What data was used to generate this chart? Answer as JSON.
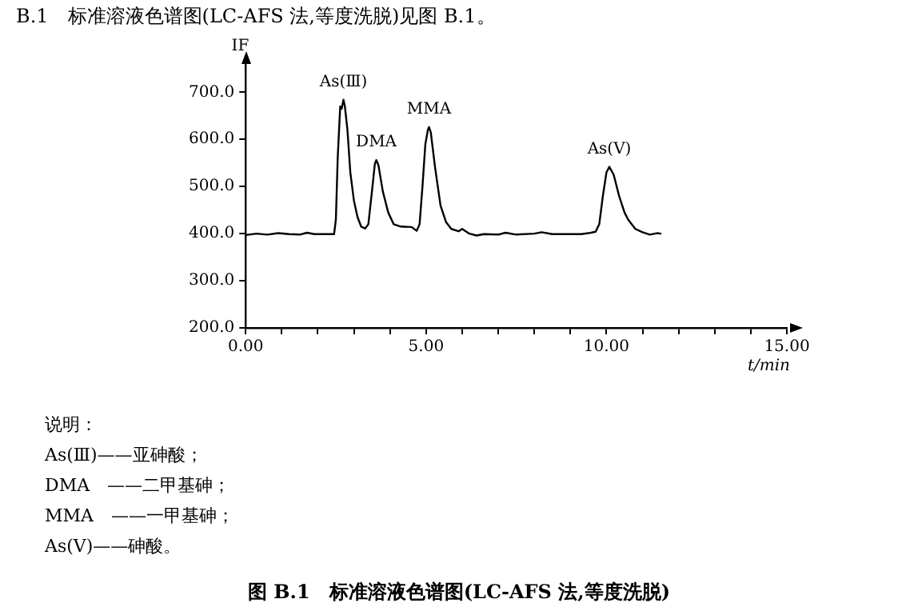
{
  "chart_data": {
    "type": "line",
    "title": "图 B.1　标准溶液色谱图(LC-AFS 法,等度洗脱)",
    "xlabel": "t/min",
    "ylabel": "IF",
    "x": [
      0.0,
      0.3,
      0.6,
      0.9,
      1.2,
      1.5,
      1.7,
      1.9,
      2.2,
      2.45,
      2.5,
      2.55,
      2.62,
      2.66,
      2.71,
      2.75,
      2.82,
      2.9,
      3.0,
      3.1,
      3.2,
      3.31,
      3.4,
      3.5,
      3.58,
      3.62,
      3.68,
      3.8,
      3.95,
      4.1,
      4.3,
      4.6,
      4.74,
      4.82,
      4.9,
      4.98,
      5.05,
      5.08,
      5.13,
      5.25,
      5.4,
      5.55,
      5.7,
      5.9,
      6.0,
      6.2,
      6.4,
      6.6,
      7.0,
      7.2,
      7.5,
      8.0,
      8.2,
      8.5,
      9.0,
      9.3,
      9.5,
      9.7,
      9.8,
      9.9,
      10.0,
      10.08,
      10.2,
      10.35,
      10.5,
      10.6,
      10.8,
      11.0,
      11.2,
      11.4,
      11.5
    ],
    "series": [
      {
        "color": "#000000",
        "values": [
          397,
          400,
          398,
          401,
          399,
          398,
          402,
          399,
          399,
          399,
          430,
          560,
          670,
          665,
          684,
          670,
          620,
          530,
          470,
          435,
          415,
          411,
          420,
          490,
          548,
          556,
          545,
          490,
          445,
          420,
          415,
          414,
          406,
          420,
          500,
          590,
          620,
          626,
          615,
          540,
          460,
          425,
          410,
          405,
          410,
          400,
          396,
          399,
          398,
          402,
          398,
          400,
          403,
          399,
          399,
          399,
          401,
          404,
          420,
          480,
          530,
          542,
          525,
          480,
          445,
          430,
          410,
          403,
          398,
          401,
          400
        ]
      }
    ],
    "xlim": [
      0,
      15
    ],
    "xticks": [
      {
        "value": 0,
        "label": "0.00"
      },
      {
        "value": 1,
        "label": null
      },
      {
        "value": 2,
        "label": null
      },
      {
        "value": 3,
        "label": null
      },
      {
        "value": 4,
        "label": null
      },
      {
        "value": 5,
        "label": "5.00"
      },
      {
        "value": 6,
        "label": null
      },
      {
        "value": 7,
        "label": null
      },
      {
        "value": 8,
        "label": null
      },
      {
        "value": 9,
        "label": null
      },
      {
        "value": 10,
        "label": "10.00"
      },
      {
        "value": 11,
        "label": null
      },
      {
        "value": 12,
        "label": null
      },
      {
        "value": 13,
        "label": null
      },
      {
        "value": 14,
        "label": null
      },
      {
        "value": 15,
        "label": "15.00"
      }
    ],
    "ylim": [
      200,
      760
    ],
    "yticks": [
      {
        "value": 200,
        "label": "200.0"
      },
      {
        "value": 300,
        "label": "300.0"
      },
      {
        "value": 400,
        "label": "400.0"
      },
      {
        "value": 500,
        "label": "500.0"
      },
      {
        "value": 600,
        "label": "600.0"
      },
      {
        "value": 700,
        "label": "700.0"
      }
    ],
    "grid": false,
    "legend": false,
    "marker": "none",
    "line_style": "solid",
    "annotations": [
      "B.1　标准溶液色谱图(LC-AFS 法,等度洗脱)见图 B.1。",
      "说明：",
      "As(Ⅲ)——亚砷酸；",
      "DMA　——二甲基砷；",
      "MMA　——一甲基砷；",
      "As(Ⅴ)——砷酸。",
      {
        "text": "As(Ⅲ)",
        "x": 2.71,
        "y": 684
      },
      {
        "text": "DMA",
        "x": 3.62,
        "y": 556
      },
      {
        "text": "MMA",
        "x": 5.08,
        "y": 626
      },
      {
        "text": "As(Ⅴ)",
        "x": 10.08,
        "y": 542
      }
    ]
  }
}
